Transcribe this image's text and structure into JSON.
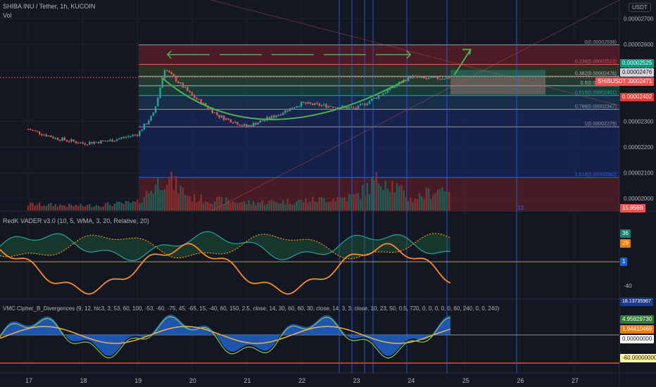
{
  "header": {
    "symbol_line": "SHIBA INU / Tether, 1h, KUCOIN",
    "vol_label": "Vol"
  },
  "currency_button": "USDT",
  "colors": {
    "bg": "#131722",
    "grid": "#1e222d",
    "up": "#26a69a",
    "down": "#ef5350",
    "fib_red": "#b22833",
    "fib_green": "#1f6f45",
    "fib_blue": "#1e3a8a",
    "hline_blue": "#2962ff"
  },
  "price_axis": {
    "ticks": [
      "0.00002700",
      "0.00002600",
      "0.00002500",
      "0.00002400",
      "0.00002300",
      "0.00002200",
      "0.00002100",
      "0.00002000"
    ]
  },
  "price_tags": [
    {
      "text": "0.00002525",
      "bg": "#089981",
      "fg": "#ffffff"
    },
    {
      "text": "0.00002476",
      "bg": "#d1d4dc",
      "fg": "#131722"
    },
    {
      "text": "0.00002471",
      "bg": "#ef5350",
      "fg": "#ffffff"
    },
    {
      "text": "SHIBUSDT",
      "bg": "#ef5350",
      "fg": "#ffffff"
    },
    {
      "text": "0.00002402",
      "bg": "#e53935",
      "fg": "#ffffff"
    },
    {
      "text": "15.956B",
      "bg": "#ef5350",
      "fg": "#ffffff"
    }
  ],
  "fib_levels": [
    {
      "label": "0(0.00002598)",
      "color": "#9598a1"
    },
    {
      "label": "0.236(0.00002522)",
      "color": "#ef5350"
    },
    {
      "label": "0.382(0.00002476)",
      "color": "#b2b5be"
    },
    {
      "label": "0.5(0.00002439)",
      "color": "#b2b5be"
    },
    {
      "label": "0.618(0.00002401)",
      "color": "#26a69a"
    },
    {
      "label": "0.786(0.00002347)",
      "color": "#9598a1"
    },
    {
      "label": "1(0.00002279)",
      "color": "#9598a1"
    },
    {
      "label": "1.618(0.00002082)",
      "color": "#2962ff"
    }
  ],
  "marker_13": "13",
  "vader": {
    "title": "RedK VADER v3.0 (10, 5, WMA, 3, 20, Relative, 20)",
    "tags": [
      {
        "text": "36",
        "bg": "#1a7f70",
        "fg": "#ffffff"
      },
      {
        "text": "29",
        "bg": "#f57c00",
        "fg": "#ffffff"
      },
      {
        "text": "1",
        "bg": "#1e5fd8",
        "fg": "#ffffff"
      }
    ],
    "axis_label": "-40"
  },
  "cipher": {
    "title": "VMC Cipher_B_Divergences (9, 12, hlc3, 3, 53, 60, 100, -53, -60, -75, 45, -65, 15, -40, 60, 150, 2.5, close, 14, 30, 60, 60, 30, close, 14, 3, 3, close, 10, 23, 50, 0.5, 720, 0, 0, 0, 0, 0, 60, 240, 0, 0, 240)",
    "tags": [
      {
        "text": "18.13735967",
        "bg": "#1e3a8a",
        "fg": "#ffffff"
      },
      {
        "text": "4.95829730",
        "bg": "#2e7d32",
        "fg": "#ffffff"
      },
      {
        "text": "1.94410469",
        "bg": "#f57c00",
        "fg": "#ffffff"
      },
      {
        "text": "0.00000000",
        "bg": "#ffffff",
        "fg": "#131722"
      },
      {
        "text": "-60.00000000",
        "bg": "#fff59d",
        "fg": "#131722"
      }
    ]
  },
  "time_axis": {
    "labels": [
      "17",
      "18",
      "19",
      "20",
      "21",
      "22",
      "23",
      "24",
      "25",
      "26",
      "27"
    ]
  },
  "chart_data": [
    {
      "type": "line",
      "title": "SHIBA INU / Tether, 1h, KUCOIN",
      "xlabel": "",
      "ylabel": "",
      "x": [
        "17",
        "17.5",
        "18",
        "18.5",
        "19",
        "19.3",
        "19.5",
        "20",
        "20.5",
        "21",
        "21.5",
        "22",
        "22.5",
        "23",
        "23.5",
        "24",
        "24.3",
        "24.7"
      ],
      "series": [
        {
          "values": [
            2.27e-05,
            2.235e-05,
            2.215e-05,
            2.225e-05,
            2.25e-05,
            2.33e-05,
            2.505e-05,
            2.4e-05,
            2.32e-05,
            2.28e-05,
            2.32e-05,
            2.37e-05,
            2.36e-05,
            2.35e-05,
            2.41e-05,
            2.475e-05,
            2.465e-05,
            2.471e-05
          ]
        }
      ],
      "ylim": [
        2e-05,
        2.74e-05
      ],
      "grid": true
    },
    {
      "type": "bar",
      "title": "Vol",
      "xlabel": "",
      "ylabel": "",
      "categories": [
        "17",
        "18",
        "19",
        "19.5",
        "20",
        "21",
        "22",
        "23",
        "23.5",
        "24",
        "24.7"
      ],
      "values": [
        4,
        3,
        5,
        22,
        8,
        5,
        6,
        9,
        22,
        7,
        15.956
      ]
    }
  ]
}
